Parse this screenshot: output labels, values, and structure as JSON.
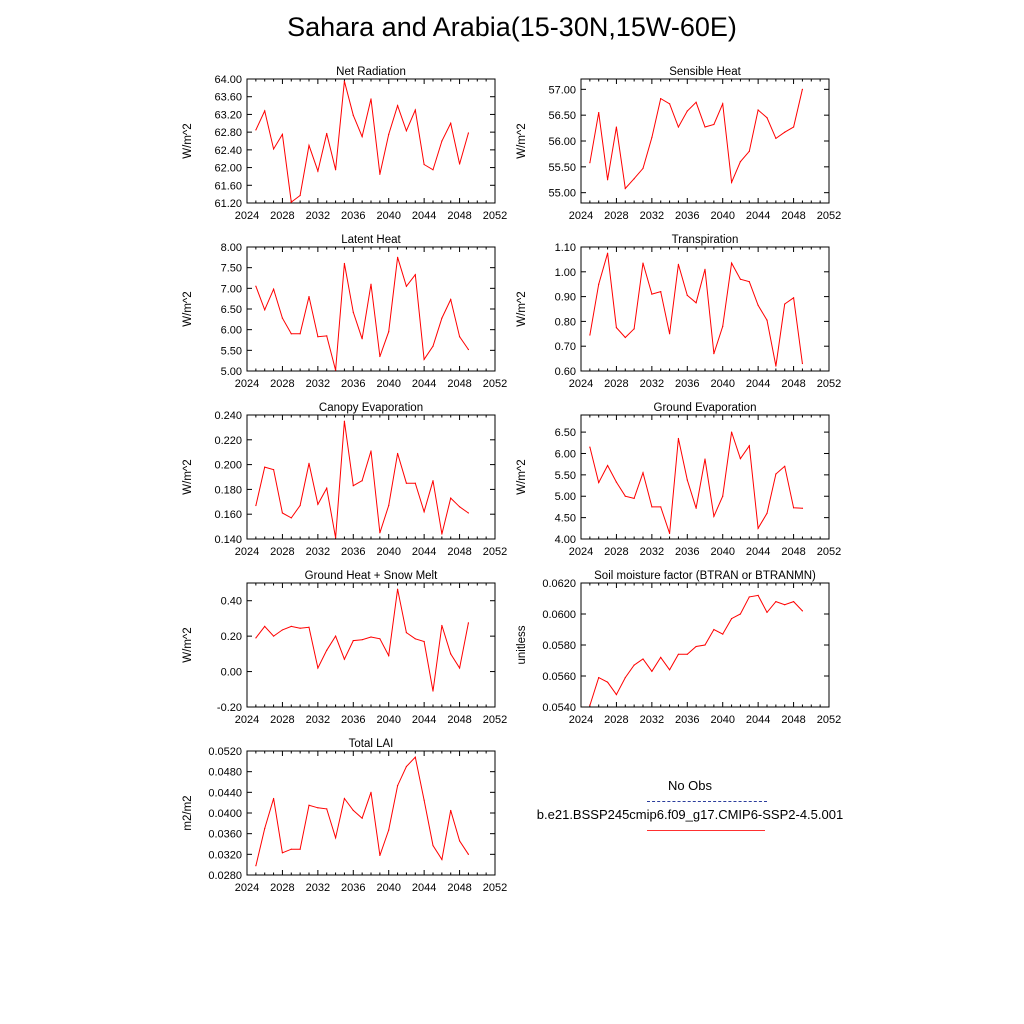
{
  "title": "Sahara and Arabia(15-30N,15W-60E)",
  "colors": {
    "series": "#ff0000",
    "obs": "#2b3d9c",
    "axis": "#000000"
  },
  "legend": {
    "obs_label": "No Obs",
    "case_label": "b.e21.BSSP245cmip6.f09_g17.CMIP6-SSP2-4.5.001"
  },
  "chart_data": [
    {
      "type": "line",
      "title": "Net Radiation",
      "ylabel": "W/m^2",
      "xlim": [
        2024,
        2052
      ],
      "ylim": [
        61.2,
        64.0
      ],
      "xticks": [
        "2024",
        "2028",
        "2032",
        "2036",
        "2040",
        "2044",
        "2048",
        "2052"
      ],
      "yticks": [
        "61.20",
        "61.60",
        "62.00",
        "62.40",
        "62.80",
        "63.20",
        "63.60",
        "64.00"
      ],
      "series": [
        {
          "x": [
            2025,
            2026,
            2027,
            2028,
            2029,
            2030,
            2031,
            2032,
            2033,
            2034,
            2035,
            2036,
            2037,
            2038,
            2039,
            2040,
            2041,
            2042,
            2043,
            2044,
            2045,
            2046,
            2047,
            2048,
            2049
          ],
          "values": [
            62.85,
            63.28,
            62.42,
            62.75,
            61.22,
            61.37,
            62.5,
            61.92,
            62.77,
            61.95,
            63.95,
            63.18,
            62.7,
            63.55,
            61.85,
            62.75,
            63.4,
            62.83,
            63.3,
            62.07,
            61.95,
            62.6,
            63.0,
            62.08,
            62.78
          ]
        }
      ]
    },
    {
      "type": "line",
      "title": "Sensible Heat",
      "ylabel": "W/m^2",
      "xlim": [
        2024,
        2052
      ],
      "ylim": [
        54.8,
        57.2
      ],
      "xticks": [
        "2024",
        "2028",
        "2032",
        "2036",
        "2040",
        "2044",
        "2048",
        "2052"
      ],
      "yticks": [
        "55.00",
        "55.50",
        "56.00",
        "56.50",
        "57.00"
      ],
      "series": [
        {
          "x": [
            2025,
            2026,
            2027,
            2028,
            2029,
            2030,
            2031,
            2032,
            2033,
            2034,
            2035,
            2036,
            2037,
            2038,
            2039,
            2040,
            2041,
            2042,
            2043,
            2044,
            2045,
            2046,
            2047,
            2048,
            2049
          ],
          "values": [
            55.58,
            56.55,
            55.25,
            56.27,
            55.08,
            55.27,
            55.47,
            56.07,
            56.82,
            56.72,
            56.27,
            56.58,
            56.75,
            56.27,
            56.32,
            56.72,
            55.2,
            55.6,
            55.8,
            56.6,
            56.45,
            56.05,
            56.17,
            56.27,
            57.0
          ]
        }
      ]
    },
    {
      "type": "line",
      "title": "Latent Heat",
      "ylabel": "W/m^2",
      "xlim": [
        2024,
        2052
      ],
      "ylim": [
        5.0,
        8.0
      ],
      "xticks": [
        "2024",
        "2028",
        "2032",
        "2036",
        "2040",
        "2044",
        "2048",
        "2052"
      ],
      "yticks": [
        "5.00",
        "5.50",
        "6.00",
        "6.50",
        "7.00",
        "7.50",
        "8.00"
      ],
      "series": [
        {
          "x": [
            2025,
            2026,
            2027,
            2028,
            2029,
            2030,
            2031,
            2032,
            2033,
            2034,
            2035,
            2036,
            2037,
            2038,
            2039,
            2040,
            2041,
            2042,
            2043,
            2044,
            2045,
            2046,
            2047,
            2048,
            2049
          ],
          "values": [
            7.05,
            6.48,
            6.98,
            6.28,
            5.9,
            5.9,
            6.8,
            5.83,
            5.85,
            5.02,
            7.6,
            6.42,
            5.78,
            7.1,
            5.35,
            5.95,
            7.75,
            7.05,
            7.33,
            5.28,
            5.6,
            6.28,
            6.73,
            5.83,
            5.52
          ]
        }
      ]
    },
    {
      "type": "line",
      "title": "Transpiration",
      "ylabel": "W/m^2",
      "xlim": [
        2024,
        2052
      ],
      "ylim": [
        0.6,
        1.1
      ],
      "xticks": [
        "2024",
        "2028",
        "2032",
        "2036",
        "2040",
        "2044",
        "2048",
        "2052"
      ],
      "yticks": [
        "0.60",
        "0.70",
        "0.80",
        "0.90",
        "1.00",
        "1.10"
      ],
      "series": [
        {
          "x": [
            2025,
            2026,
            2027,
            2028,
            2029,
            2030,
            2031,
            2032,
            2033,
            2034,
            2035,
            2036,
            2037,
            2038,
            2039,
            2040,
            2041,
            2042,
            2043,
            2044,
            2045,
            2046,
            2047,
            2048,
            2049
          ],
          "values": [
            0.745,
            0.95,
            1.075,
            0.775,
            0.735,
            0.77,
            1.035,
            0.91,
            0.92,
            0.75,
            1.03,
            0.905,
            0.875,
            1.01,
            0.67,
            0.78,
            1.035,
            0.97,
            0.96,
            0.865,
            0.805,
            0.62,
            0.87,
            0.895,
            0.63
          ]
        }
      ]
    },
    {
      "type": "line",
      "title": "Canopy Evaporation",
      "ylabel": "W/m^2",
      "xlim": [
        2024,
        2052
      ],
      "ylim": [
        0.14,
        0.24
      ],
      "xticks": [
        "2024",
        "2028",
        "2032",
        "2036",
        "2040",
        "2044",
        "2048",
        "2052"
      ],
      "yticks": [
        "0.140",
        "0.160",
        "0.180",
        "0.200",
        "0.220",
        "0.240"
      ],
      "series": [
        {
          "x": [
            2025,
            2026,
            2027,
            2028,
            2029,
            2030,
            2031,
            2032,
            2033,
            2034,
            2035,
            2036,
            2037,
            2038,
            2039,
            2040,
            2041,
            2042,
            2043,
            2044,
            2045,
            2046,
            2047,
            2048,
            2049
          ],
          "values": [
            0.167,
            0.198,
            0.196,
            0.161,
            0.157,
            0.167,
            0.201,
            0.168,
            0.181,
            0.141,
            0.235,
            0.183,
            0.187,
            0.211,
            0.145,
            0.167,
            0.209,
            0.185,
            0.185,
            0.162,
            0.187,
            0.144,
            0.173,
            0.166,
            0.161
          ]
        }
      ]
    },
    {
      "type": "line",
      "title": "Ground Evaporation",
      "ylabel": "W/m^2",
      "xlim": [
        2024,
        2052
      ],
      "ylim": [
        4.0,
        6.9
      ],
      "xticks": [
        "2024",
        "2028",
        "2032",
        "2036",
        "2040",
        "2044",
        "2048",
        "2052"
      ],
      "yticks": [
        "4.00",
        "4.50",
        "5.00",
        "5.50",
        "6.00",
        "6.50"
      ],
      "series": [
        {
          "x": [
            2025,
            2026,
            2027,
            2028,
            2029,
            2030,
            2031,
            2032,
            2033,
            2034,
            2035,
            2036,
            2037,
            2038,
            2039,
            2040,
            2041,
            2042,
            2043,
            2044,
            2045,
            2046,
            2047,
            2048,
            2049
          ],
          "values": [
            6.15,
            5.32,
            5.72,
            5.33,
            5.0,
            4.95,
            5.55,
            4.75,
            4.75,
            4.13,
            6.35,
            5.38,
            4.72,
            5.87,
            4.53,
            5.0,
            6.5,
            5.88,
            6.18,
            4.25,
            4.6,
            5.52,
            5.7,
            4.73,
            4.72
          ]
        }
      ]
    },
    {
      "type": "line",
      "title": "Ground Heat + Snow Melt",
      "ylabel": "W/m^2",
      "xlim": [
        2024,
        2052
      ],
      "ylim": [
        -0.2,
        0.5
      ],
      "xticks": [
        "2024",
        "2028",
        "2032",
        "2036",
        "2040",
        "2044",
        "2048",
        "2052"
      ],
      "yticks": [
        "-0.20",
        "0.00",
        "0.20",
        "0.40"
      ],
      "series": [
        {
          "x": [
            2025,
            2026,
            2027,
            2028,
            2029,
            2030,
            2031,
            2032,
            2033,
            2034,
            2035,
            2036,
            2037,
            2038,
            2039,
            2040,
            2041,
            2042,
            2043,
            2044,
            2045,
            2046,
            2047,
            2048,
            2049
          ],
          "values": [
            0.19,
            0.255,
            0.2,
            0.235,
            0.255,
            0.245,
            0.25,
            0.02,
            0.12,
            0.2,
            0.07,
            0.175,
            0.18,
            0.195,
            0.185,
            0.09,
            0.465,
            0.22,
            0.185,
            0.17,
            -0.11,
            0.26,
            0.1,
            0.02,
            0.275
          ]
        }
      ]
    },
    {
      "type": "line",
      "title": "Soil moisture factor (BTRAN or BTRANMN)",
      "ylabel": "unitless",
      "xlim": [
        2024,
        2052
      ],
      "ylim": [
        0.054,
        0.062
      ],
      "xticks": [
        "2024",
        "2028",
        "2032",
        "2036",
        "2040",
        "2044",
        "2048",
        "2052"
      ],
      "yticks": [
        "0.0540",
        "0.0560",
        "0.0580",
        "0.0600",
        "0.0620"
      ],
      "series": [
        {
          "x": [
            2025,
            2026,
            2027,
            2028,
            2029,
            2030,
            2031,
            2032,
            2033,
            2034,
            2035,
            2036,
            2037,
            2038,
            2039,
            2040,
            2041,
            2042,
            2043,
            2044,
            2045,
            2046,
            2047,
            2048,
            2049
          ],
          "values": [
            0.0541,
            0.0559,
            0.0556,
            0.0548,
            0.0559,
            0.0567,
            0.0571,
            0.0563,
            0.0572,
            0.0564,
            0.0574,
            0.0574,
            0.0579,
            0.058,
            0.059,
            0.0587,
            0.0597,
            0.06,
            0.0611,
            0.0612,
            0.0601,
            0.0608,
            0.0606,
            0.0608,
            0.0602
          ]
        }
      ]
    },
    {
      "type": "line",
      "title": "Total LAI",
      "ylabel": "m2/m2",
      "xlim": [
        2024,
        2052
      ],
      "ylim": [
        0.028,
        0.052
      ],
      "xticks": [
        "2024",
        "2028",
        "2032",
        "2036",
        "2040",
        "2044",
        "2048",
        "2052"
      ],
      "yticks": [
        "0.0280",
        "0.0320",
        "0.0360",
        "0.0400",
        "0.0440",
        "0.0480",
        "0.0520"
      ],
      "series": [
        {
          "x": [
            2025,
            2026,
            2027,
            2028,
            2029,
            2030,
            2031,
            2032,
            2033,
            2034,
            2035,
            2036,
            2037,
            2038,
            2039,
            2040,
            2041,
            2042,
            2043,
            2044,
            2045,
            2046,
            2047,
            2048,
            2049
          ],
          "values": [
            0.0298,
            0.037,
            0.0428,
            0.0323,
            0.033,
            0.033,
            0.0415,
            0.041,
            0.0408,
            0.0352,
            0.0428,
            0.0405,
            0.039,
            0.044,
            0.0318,
            0.0367,
            0.0453,
            0.049,
            0.0508,
            0.0425,
            0.0337,
            0.031,
            0.0405,
            0.0346,
            0.032
          ]
        }
      ]
    }
  ]
}
